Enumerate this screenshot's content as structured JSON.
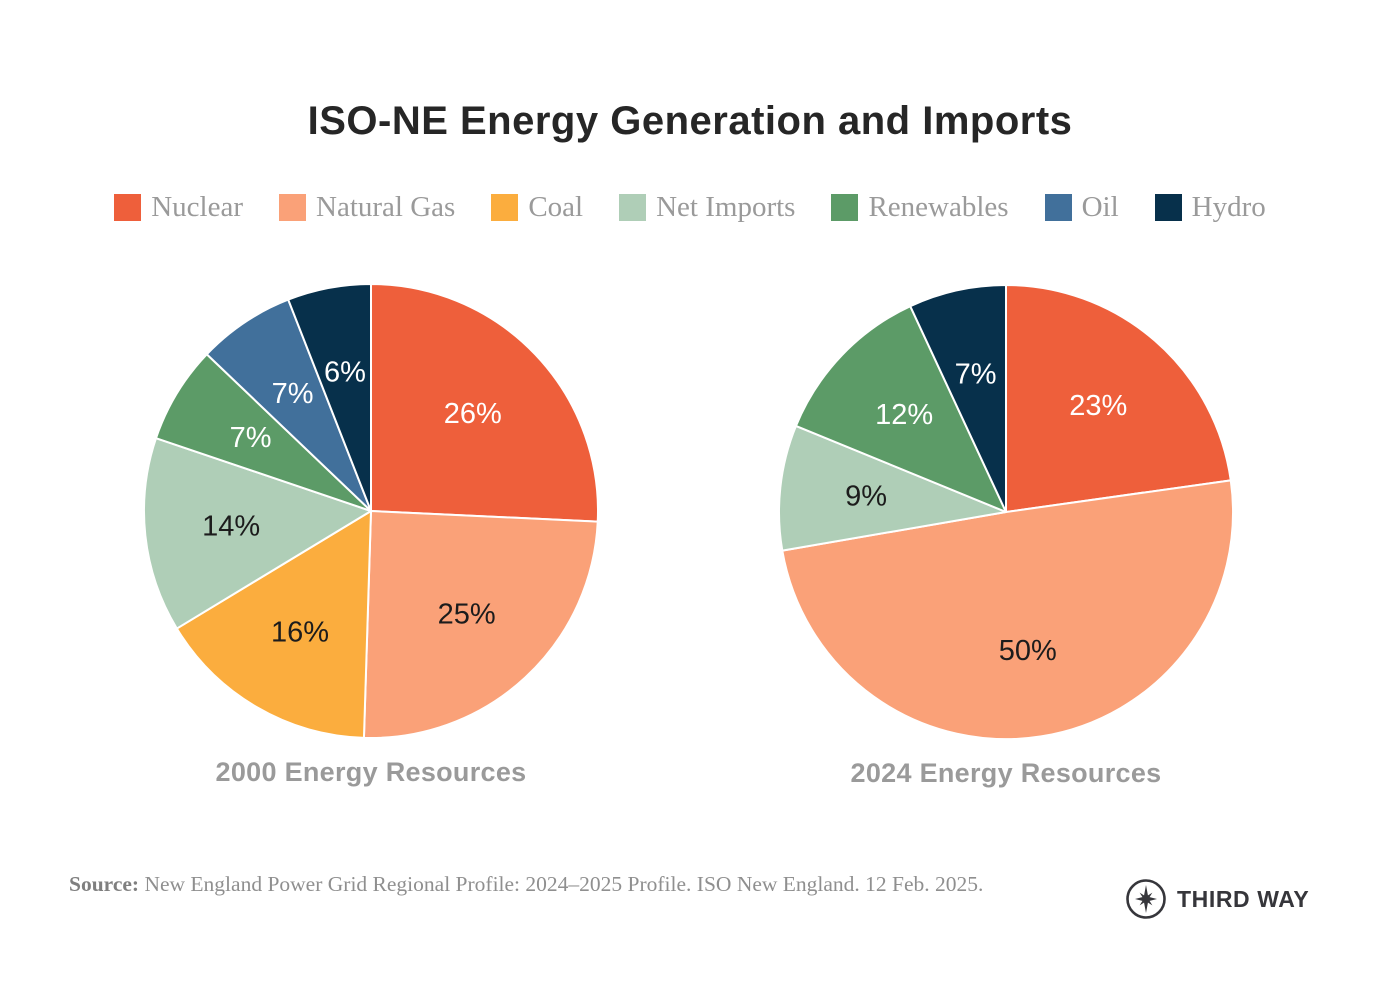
{
  "page": {
    "title": "ISO-NE Energy Generation and Imports"
  },
  "colors": {
    "nuclear": "#EE5F3B",
    "natural_gas": "#FAA178",
    "coal": "#FBAD3E",
    "net_imports": "#AFCEB7",
    "renewables": "#5C9B67",
    "oil": "#41709B",
    "hydro": "#07304B",
    "label_light": "#FFFFFF",
    "label_dark": "#1C1C1C",
    "text_gray": "#9A9A9A"
  },
  "legend": {
    "items": [
      {
        "label": "Nuclear",
        "color": "#EE5F3B"
      },
      {
        "label": "Natural Gas",
        "color": "#FAA178"
      },
      {
        "label": "Coal",
        "color": "#FBAD3E"
      },
      {
        "label": "Net Imports",
        "color": "#AFCEB7"
      },
      {
        "label": "Renewables",
        "color": "#5C9B67"
      },
      {
        "label": "Oil",
        "color": "#41709B"
      },
      {
        "label": "Hydro",
        "color": "#07304B"
      }
    ]
  },
  "chart_data": [
    {
      "type": "pie",
      "title": "2000 Energy Resources",
      "start_angle": "12-oclock",
      "direction": "clockwise",
      "slices": [
        {
          "label": "Nuclear",
          "value": 26,
          "display": "26%",
          "color": "#EE5F3B",
          "text_color": "#FFFFFF"
        },
        {
          "label": "Natural Gas",
          "value": 25,
          "display": "25%",
          "color": "#FAA178",
          "text_color": "#1C1C1C"
        },
        {
          "label": "Coal",
          "value": 16,
          "display": "16%",
          "color": "#FBAD3E",
          "text_color": "#1C1C1C"
        },
        {
          "label": "Net Imports",
          "value": 14,
          "display": "14%",
          "color": "#AFCEB7",
          "text_color": "#1C1C1C"
        },
        {
          "label": "Renewables",
          "value": 7,
          "display": "7%",
          "color": "#5C9B67",
          "text_color": "#FFFFFF"
        },
        {
          "label": "Oil",
          "value": 7,
          "display": "7%",
          "color": "#41709B",
          "text_color": "#FFFFFF"
        },
        {
          "label": "Hydro",
          "value": 6,
          "display": "6%",
          "color": "#07304B",
          "text_color": "#FFFFFF"
        }
      ]
    },
    {
      "type": "pie",
      "title": "2024 Energy Resources",
      "start_angle": "12-oclock",
      "direction": "clockwise",
      "slices": [
        {
          "label": "Nuclear",
          "value": 23,
          "display": "23%",
          "color": "#EE5F3B",
          "text_color": "#FFFFFF"
        },
        {
          "label": "Natural Gas",
          "value": 50,
          "display": "50%",
          "color": "#FAA178",
          "text_color": "#1C1C1C"
        },
        {
          "label": "Net Imports",
          "value": 9,
          "display": "9%",
          "color": "#AFCEB7",
          "text_color": "#1C1C1C"
        },
        {
          "label": "Renewables",
          "value": 12,
          "display": "12%",
          "color": "#5C9B67",
          "text_color": "#FFFFFF"
        },
        {
          "label": "Hydro",
          "value": 7,
          "display": "7%",
          "color": "#07304B",
          "text_color": "#FFFFFF"
        }
      ]
    }
  ],
  "footer": {
    "source_label": "Source:",
    "source_text": " New England Power Grid Regional Profile: 2024–2025 Profile. ISO New England. 12 Feb. 2025.",
    "logo_text": "THIRD WAY"
  }
}
